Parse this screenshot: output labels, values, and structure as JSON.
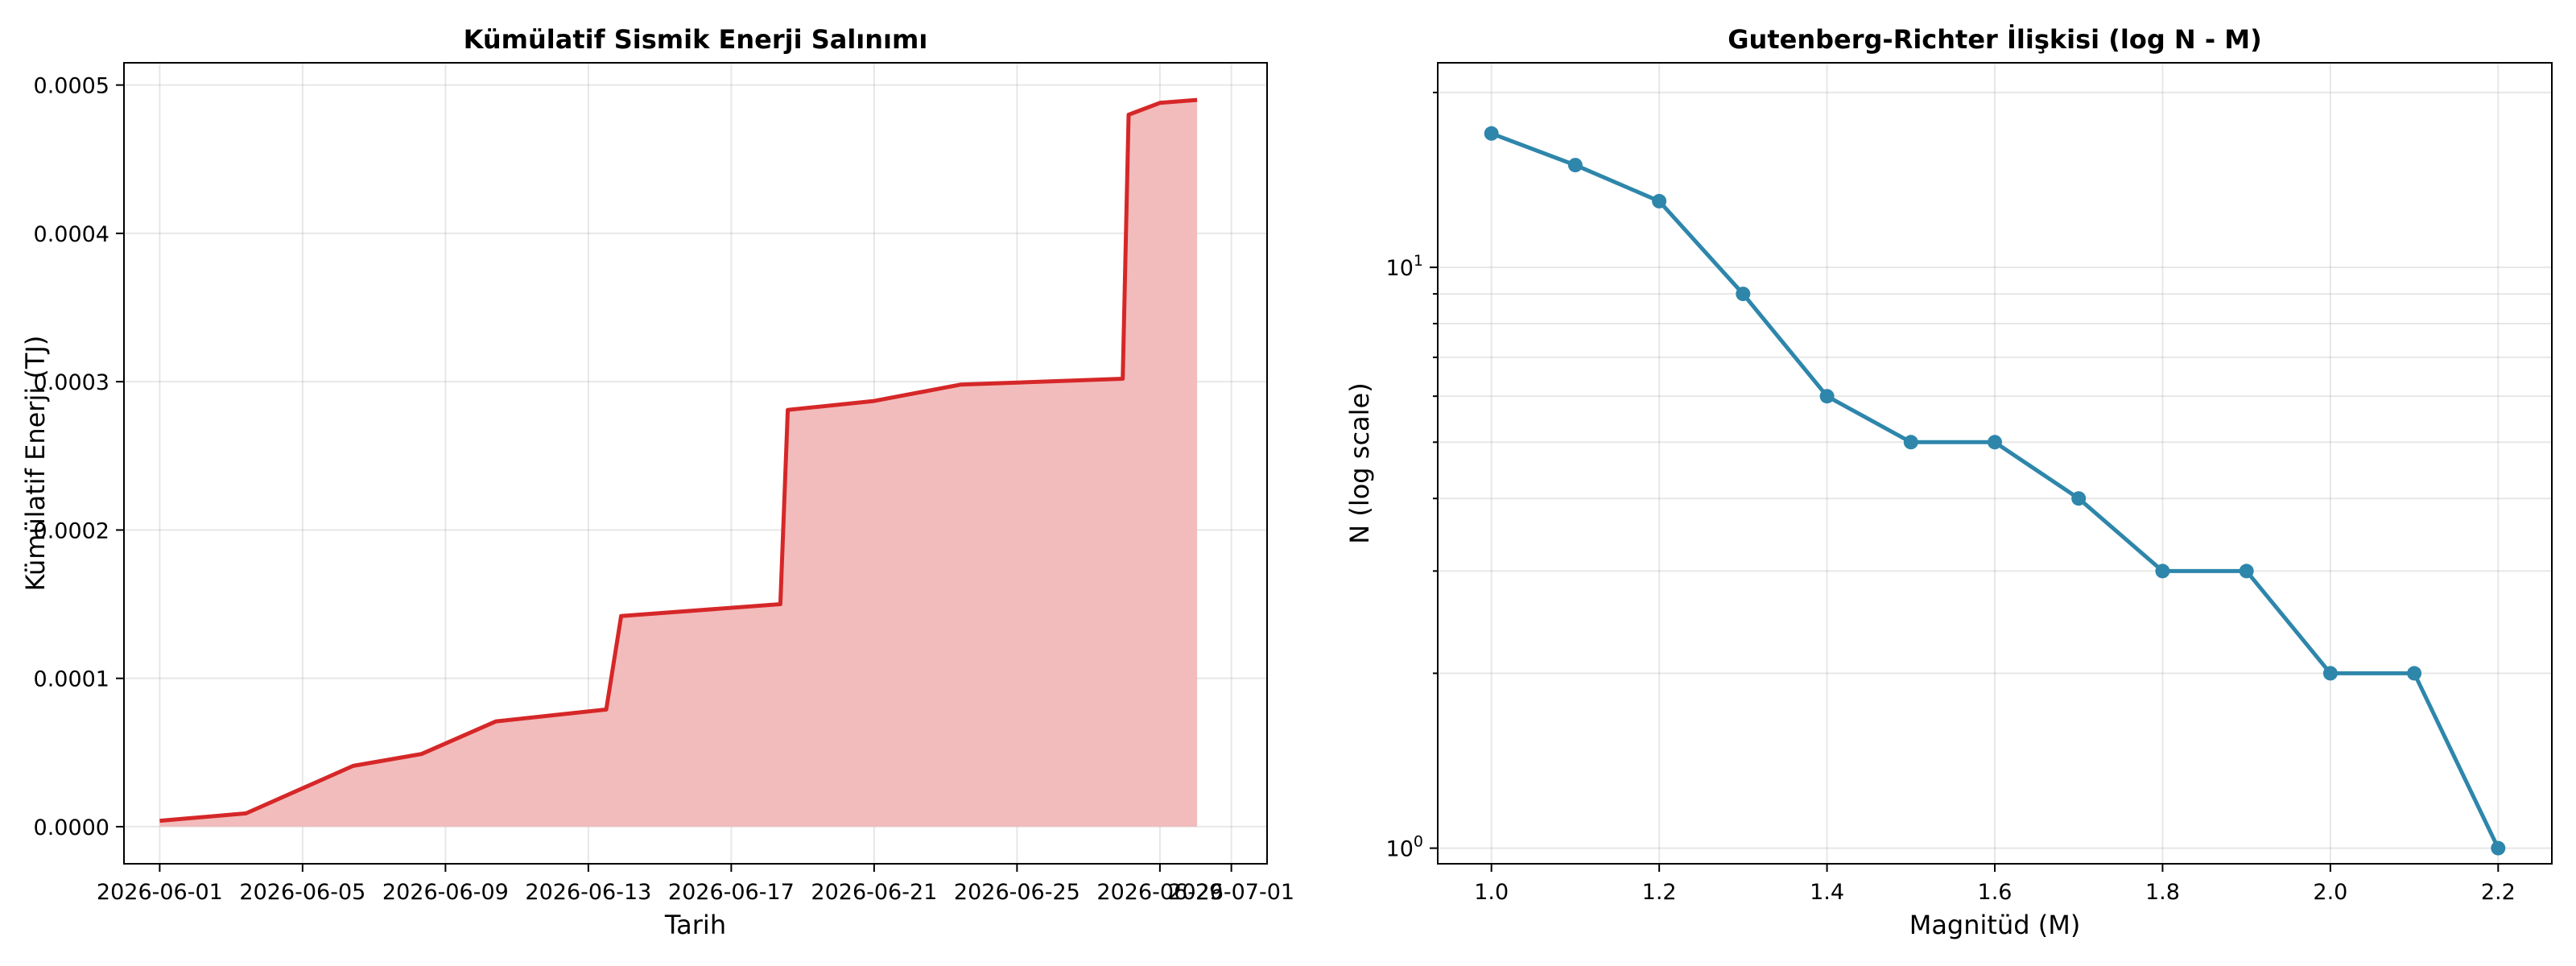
{
  "chart_data": [
    {
      "type": "area",
      "title": "Kümülatif Sismik Enerji Salınımı",
      "xlabel": "Tarih",
      "ylabel": "Kümülatif Enerji (TJ)",
      "x_axis_type": "date",
      "xlim": [
        "2026-05-31",
        "2026-07-02"
      ],
      "ylim": [
        -2.5e-05,
        0.000515
      ],
      "xticks": [
        "2026-06-01",
        "2026-06-05",
        "2026-06-09",
        "2026-06-13",
        "2026-06-17",
        "2026-06-21",
        "2026-06-25",
        "2026-06-29",
        "2026-07-01"
      ],
      "yticks": [
        0,
        0.0001,
        0.0002,
        0.0003,
        0.0004,
        0.0005
      ],
      "ytick_labels": [
        "0.0000",
        "0.0001",
        "0.0002",
        "0.0003",
        "0.0004",
        "0.0005"
      ],
      "grid": true,
      "line_color": "#d62728",
      "fill_color": "#f2bcbc",
      "points": [
        {
          "x": "2026-06-01T00:00",
          "y": 4e-06
        },
        {
          "x": "2026-06-03T10:00",
          "y": 9e-06
        },
        {
          "x": "2026-06-06T10:00",
          "y": 4.1e-05
        },
        {
          "x": "2026-06-08T08:00",
          "y": 4.9e-05
        },
        {
          "x": "2026-06-10T10:00",
          "y": 7.1e-05
        },
        {
          "x": "2026-06-13T12:00",
          "y": 7.9e-05
        },
        {
          "x": "2026-06-13T22:00",
          "y": 0.000142
        },
        {
          "x": "2026-06-18T09:00",
          "y": 0.00015
        },
        {
          "x": "2026-06-18T14:00",
          "y": 0.000281
        },
        {
          "x": "2026-06-21T00:00",
          "y": 0.000287
        },
        {
          "x": "2026-06-23T10:00",
          "y": 0.000298
        },
        {
          "x": "2026-06-27T23:00",
          "y": 0.000302
        },
        {
          "x": "2026-06-28T03:00",
          "y": 0.00048
        },
        {
          "x": "2026-06-29T00:00",
          "y": 0.000488
        },
        {
          "x": "2026-06-30T01:00",
          "y": 0.00049
        }
      ]
    },
    {
      "type": "line",
      "title": "Gutenberg-Richter İlişkisi (log N - M)",
      "xlabel": "Magnitüd (M)",
      "ylabel": "N (log scale)",
      "yscale": "log",
      "xlim": [
        0.936,
        2.264
      ],
      "ylim": [
        0.94,
        22.5
      ],
      "xticks": [
        1.0,
        1.2,
        1.4,
        1.6,
        1.8,
        2.0,
        2.2
      ],
      "xtick_labels": [
        "1.0",
        "1.2",
        "1.4",
        "1.6",
        "1.8",
        "2.0",
        "2.2"
      ],
      "grid": true,
      "line_color": "#2e86ab",
      "x": [
        1.0,
        1.1,
        1.2,
        1.3,
        1.4,
        1.5,
        1.6,
        1.7,
        1.8,
        1.9,
        2.0,
        2.1,
        2.2
      ],
      "y": [
        17,
        15,
        13,
        9,
        6,
        5,
        5,
        4,
        3,
        3,
        2,
        2,
        1
      ]
    }
  ]
}
